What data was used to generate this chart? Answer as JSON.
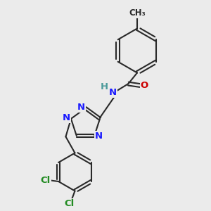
{
  "bg_color": "#ebebeb",
  "bond_color": "#2a2a2a",
  "bond_width": 1.5,
  "atom_colors": {
    "C": "#2a2a2a",
    "N": "#1a1aff",
    "O": "#cc0000",
    "Cl": "#228B22",
    "H": "#4a9a9a"
  },
  "font_size_atom": 9.5,
  "font_size_ch3": 8.5
}
